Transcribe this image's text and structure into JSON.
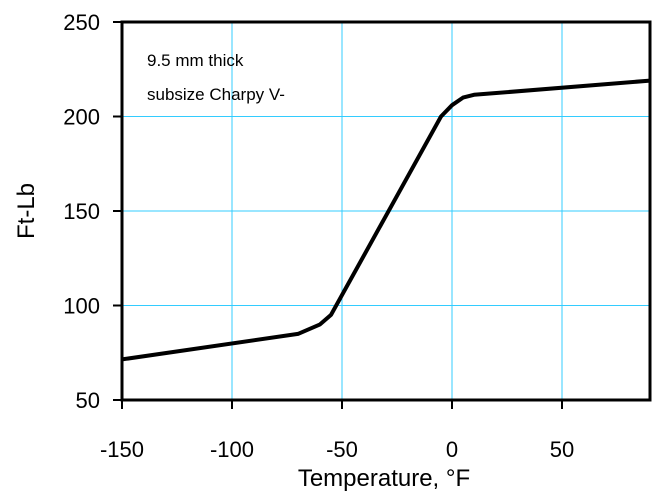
{
  "chart_data": {
    "type": "line",
    "title": "",
    "xlabel": "Temperature, °F",
    "ylabel": "Ft-Lb",
    "xlim": [
      -150,
      90
    ],
    "ylim": [
      50,
      250
    ],
    "xticks": [
      -150,
      -100,
      -50,
      0,
      50
    ],
    "yticks": [
      50,
      100,
      150,
      200,
      250
    ],
    "grid": true,
    "annotation_lines": [
      "9.5 mm thick",
      "subsize Charpy V-"
    ],
    "series": [
      {
        "x": [
          -150,
          -70,
          -60,
          -55,
          -5,
          0,
          5,
          10,
          90
        ],
        "y": [
          71.5,
          85,
          90,
          95,
          200,
          206,
          210,
          211.5,
          219
        ]
      }
    ]
  },
  "colors": {
    "grid": "#33ccff",
    "line": "#000000",
    "frame": "#000000"
  }
}
